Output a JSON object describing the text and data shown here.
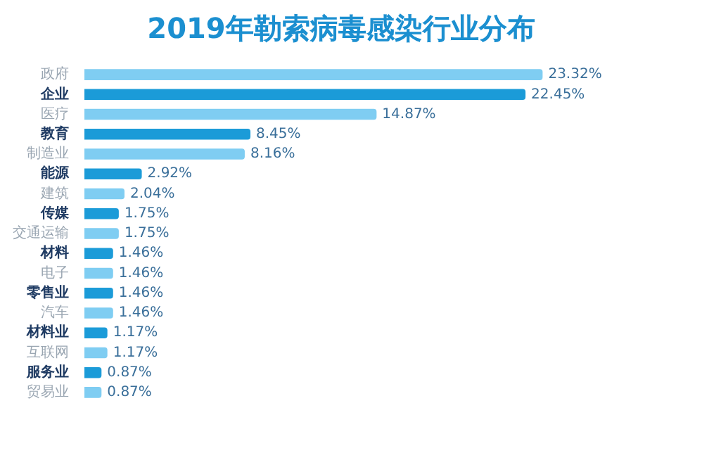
{
  "chart_data": {
    "type": "bar",
    "orientation": "horizontal",
    "title": "2019年勒索病毒感染行业分布",
    "categories": [
      "政府",
      "企业",
      "医疗",
      "教育",
      "制造业",
      "能源",
      "建筑",
      "传媒",
      "交通运输",
      "材料",
      "电子",
      "零售业",
      "汽车",
      "材料业",
      "互联网",
      "服务业",
      "贸易业"
    ],
    "values": [
      23.32,
      22.45,
      14.87,
      8.45,
      8.16,
      2.92,
      2.04,
      1.75,
      1.75,
      1.46,
      1.46,
      1.46,
      1.46,
      1.17,
      1.17,
      0.87,
      0.87
    ],
    "colors": [
      "#7fcdf2",
      "#1b9bd8",
      "#7fcdf2",
      "#1b9bd8",
      "#7fcdf2",
      "#1b9bd8",
      "#7fcdf2",
      "#1b9bd8",
      "#7fcdf2",
      "#1b9bd8",
      "#7fcdf2",
      "#1b9bd8",
      "#7fcdf2",
      "#1b9bd8",
      "#7fcdf2",
      "#1b9bd8",
      "#7fcdf2"
    ],
    "value_labels": [
      "23.32%",
      "22.45%",
      "14.87%",
      "8.45%",
      "8.16%",
      "2.92%",
      "2.04%",
      "1.75%",
      "1.75%",
      "1.46%",
      "1.46%",
      "1.46%",
      "1.46%",
      "1.17%",
      "1.17%",
      "0.87%",
      "0.87%"
    ],
    "tick_labels": "y",
    "legend": false
  }
}
